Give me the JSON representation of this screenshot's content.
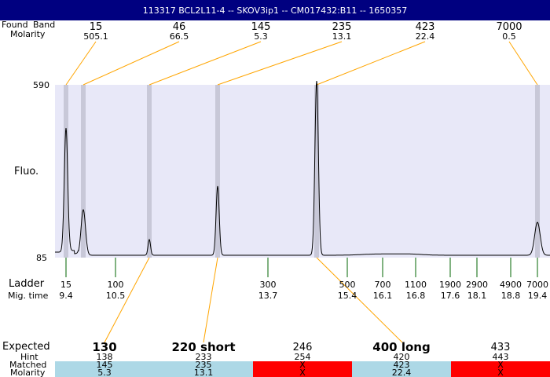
{
  "header": {
    "title": "113317  BCL2L11-4 -- SKOV3ip1 -- CM017432:B11 -- 1650357"
  },
  "labels": {
    "found": "Found",
    "band": "Band",
    "molarity": "Molarity",
    "fluo": "Fluo.",
    "ladder": "Ladder",
    "mig_time": "Mig. time",
    "expected": "Expected",
    "hint": "Hint",
    "matched": "Matched",
    "molarity2": "Molarity"
  },
  "chart_data": {
    "type": "line",
    "ylabel": "Fluo.",
    "ylim": [
      85,
      590
    ],
    "y_ticks": [
      "590",
      "85"
    ],
    "found_peaks": [
      {
        "size": "15",
        "molarity": "505.1"
      },
      {
        "size": "46",
        "molarity": "66.5"
      },
      {
        "size": "145",
        "molarity": "5.3"
      },
      {
        "size": "235",
        "molarity": "13.1"
      },
      {
        "size": "423",
        "molarity": "22.4"
      },
      {
        "size": "7000",
        "molarity": "0.5"
      }
    ],
    "ladder": [
      {
        "size": "15",
        "time": "9.4"
      },
      {
        "size": "100",
        "time": "10.5"
      },
      {
        "size": "300",
        "time": "13.7"
      },
      {
        "size": "500",
        "time": "15.4"
      },
      {
        "size": "700",
        "time": "16.1"
      },
      {
        "size": "1100",
        "time": "16.8"
      },
      {
        "size": "1900",
        "time": "17.6"
      },
      {
        "size": "2900",
        "time": "18.1"
      },
      {
        "size": "4900",
        "time": "18.8"
      },
      {
        "size": "7000",
        "time": "19.4"
      }
    ],
    "expected": [
      {
        "label": "130",
        "hint": "138",
        "matched": "145",
        "molarity": "5.3",
        "status": "match",
        "bold": true
      },
      {
        "label": "220 short",
        "hint": "233",
        "matched": "235",
        "molarity": "13.1",
        "status": "match",
        "bold": true
      },
      {
        "label": "246",
        "hint": "254",
        "matched": "X",
        "molarity": "X",
        "status": "miss",
        "bold": false
      },
      {
        "label": "400 long",
        "hint": "420",
        "matched": "423",
        "molarity": "22.4",
        "status": "match",
        "bold": true
      },
      {
        "label": "433",
        "hint": "443",
        "matched": "X",
        "molarity": "X",
        "status": "miss",
        "bold": false
      }
    ],
    "colors": {
      "match": "#add8e6",
      "miss": "#ff0000",
      "plot_bg": "#e8e8f8",
      "band": "#c8c8d8",
      "link": "#ffa500",
      "ladder_tick": "#006400",
      "header": "#000080"
    }
  }
}
